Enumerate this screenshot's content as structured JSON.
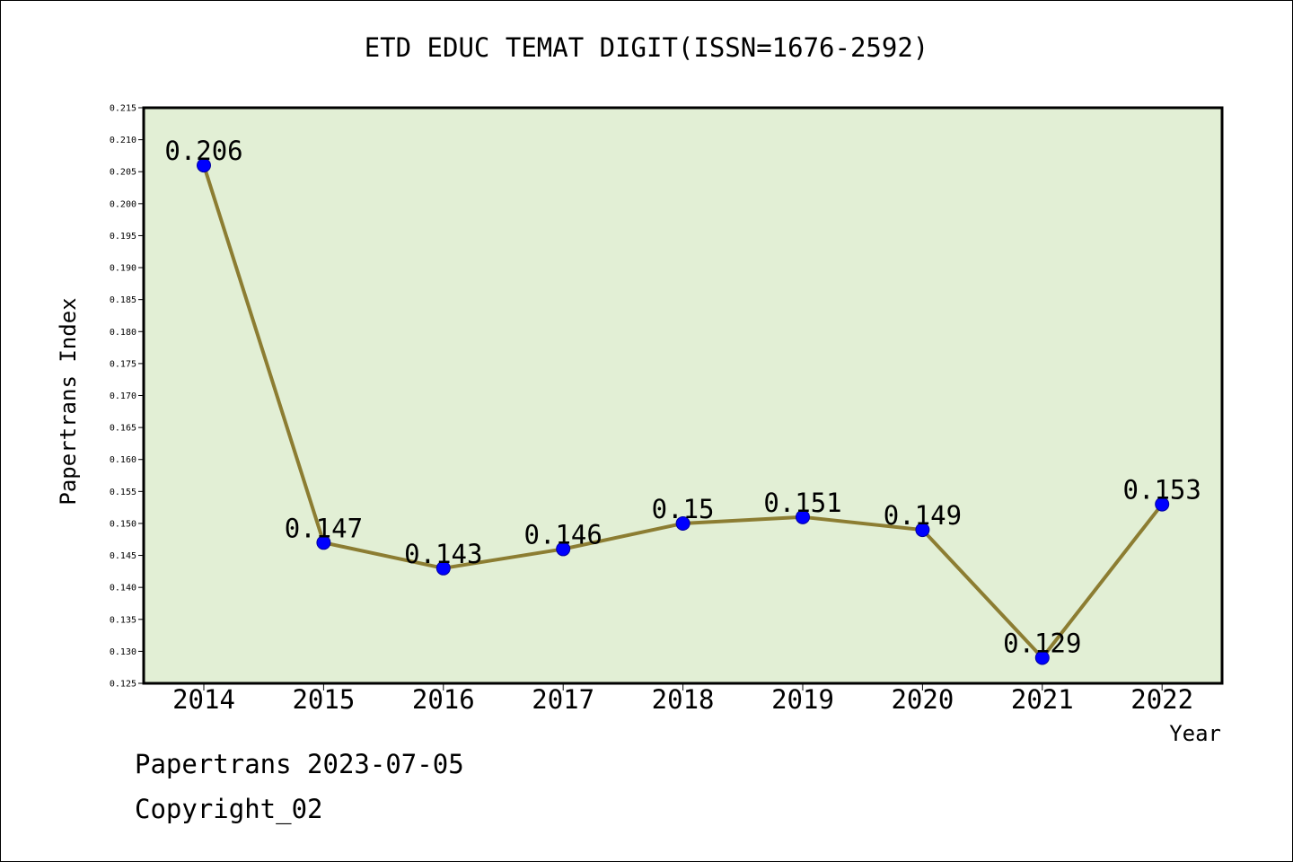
{
  "chart_data": {
    "type": "line",
    "title": "ETD EDUC TEMAT DIGIT(ISSN=1676-2592)",
    "xlabel": "Year",
    "ylabel": "Papertrans Index",
    "categories": [
      "2014",
      "2015",
      "2016",
      "2017",
      "2018",
      "2019",
      "2020",
      "2021",
      "2022"
    ],
    "series": [
      {
        "values": [
          0.206,
          0.147,
          0.143,
          0.146,
          0.15,
          0.151,
          0.149,
          0.129,
          0.153
        ],
        "data_labels": [
          "0.206",
          "0.147",
          "0.143",
          "0.146",
          "0.15",
          "0.151",
          "0.149",
          "0.129",
          "0.153"
        ]
      }
    ],
    "ylim": [
      0.125,
      0.215
    ],
    "yticks": [
      "0.125",
      "0.130",
      "0.135",
      "0.140",
      "0.145",
      "0.150",
      "0.155",
      "0.160",
      "0.165",
      "0.170",
      "0.175",
      "0.180",
      "0.185",
      "0.190",
      "0.195",
      "0.200",
      "0.205",
      "0.210",
      "0.215"
    ],
    "grid": false,
    "colors": {
      "plot_background": "#e2efd5",
      "line": "#8c7d32",
      "marker": "#0000ff",
      "axis": "#000000"
    }
  },
  "footer": {
    "line1": "Papertrans 2023-07-05",
    "line2": "Copyright_02"
  }
}
